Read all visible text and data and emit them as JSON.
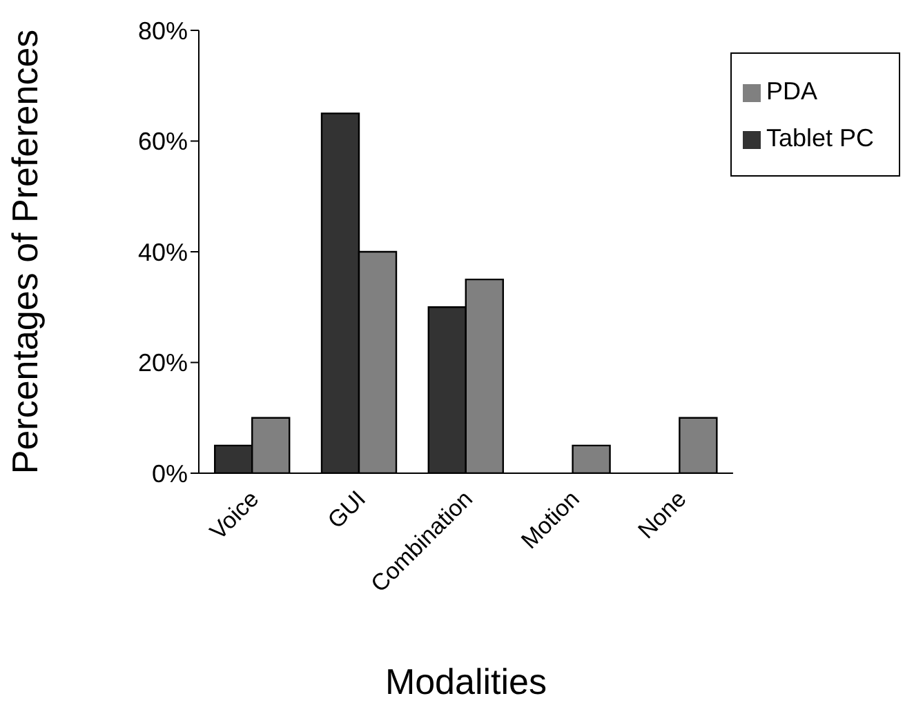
{
  "chart_data": {
    "type": "bar",
    "xlabel": "Modalities",
    "ylabel": "Percentages of Preferences",
    "categories": [
      "Voice",
      "GUI",
      "Combination",
      "Motion",
      "None"
    ],
    "series": [
      {
        "name": "Tablet PC",
        "color": "#333333",
        "values": [
          5,
          65,
          30,
          0,
          0
        ]
      },
      {
        "name": "PDA",
        "color": "#808080",
        "values": [
          10,
          40,
          35,
          5,
          10
        ]
      }
    ],
    "ylim": [
      0,
      80
    ],
    "yticks": [
      {
        "value": 0,
        "label": "0%"
      },
      {
        "value": 20,
        "label": "20%"
      },
      {
        "value": 40,
        "label": "40%"
      },
      {
        "value": 60,
        "label": "60%"
      },
      {
        "value": 80,
        "label": "80%"
      }
    ],
    "grid": false,
    "legend": "top right"
  }
}
